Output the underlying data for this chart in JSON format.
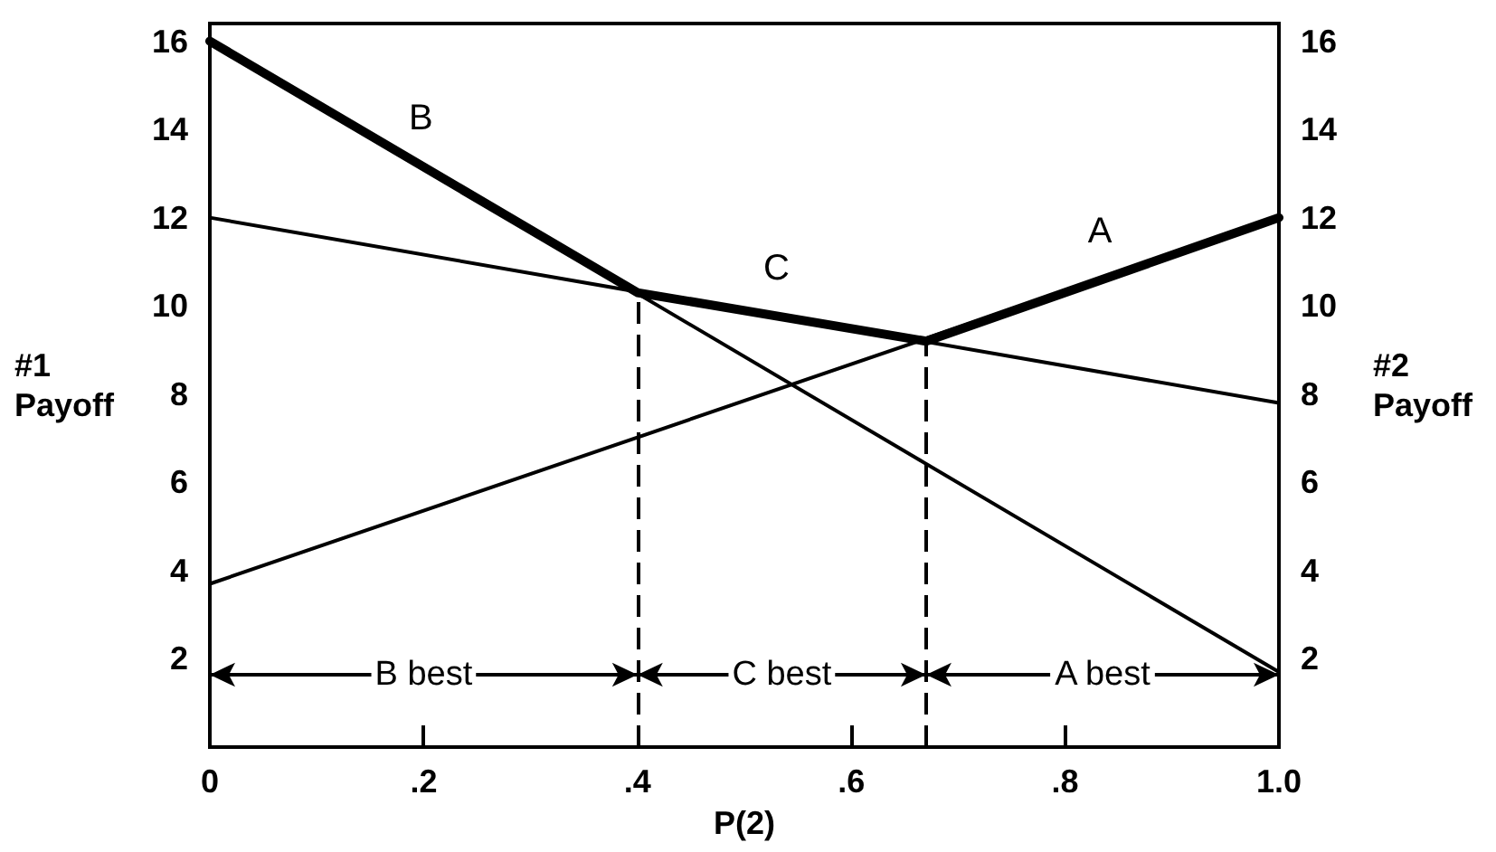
{
  "chart_data": {
    "type": "line",
    "xlabel": "P(2)",
    "ylabel": "#1 Payoff",
    "y2label": "#2 Payoff",
    "x": [
      0,
      1
    ],
    "series": [
      {
        "name": "A",
        "color": "#000000",
        "values": [
          3.7,
          12
        ]
      },
      {
        "name": "B",
        "color": "#000000",
        "values": [
          16,
          1.7
        ]
      },
      {
        "name": "C",
        "color": "#000000",
        "values": [
          12,
          7.8
        ]
      },
      {
        "color": "#000000",
        "x": [
          0,
          0.4,
          0.67,
          1
        ],
        "values": [
          16,
          10.3,
          9.2,
          12
        ]
      }
    ],
    "xlim": [
      0,
      1
    ],
    "xticks": [
      0,
      {
        "value": 0.2,
        "label": ".2"
      },
      {
        "value": 0.4,
        "label": ".4"
      },
      {
        "value": 0.6,
        "label": ".6"
      },
      {
        "value": 0.8,
        "label": ".8"
      },
      {
        "value": 1,
        "label": "1.0"
      }
    ],
    "ylim": [
      0,
      16.4
    ],
    "yticks": [
      2,
      4,
      6,
      8,
      10,
      12,
      14,
      16
    ],
    "y2lim": [
      0,
      16.4
    ],
    "y2ticks": [
      2,
      4,
      6,
      8,
      10,
      12,
      14,
      16
    ],
    "ref_lines": [
      {
        "axis": "x",
        "value": 0.4,
        "line_style": "dashed"
      },
      {
        "axis": "x",
        "value": 0.67,
        "line_style": "dashed"
      }
    ],
    "annotations": [
      "B best",
      "C best",
      "A best"
    ],
    "marker": "none",
    "line_style": "solid"
  }
}
